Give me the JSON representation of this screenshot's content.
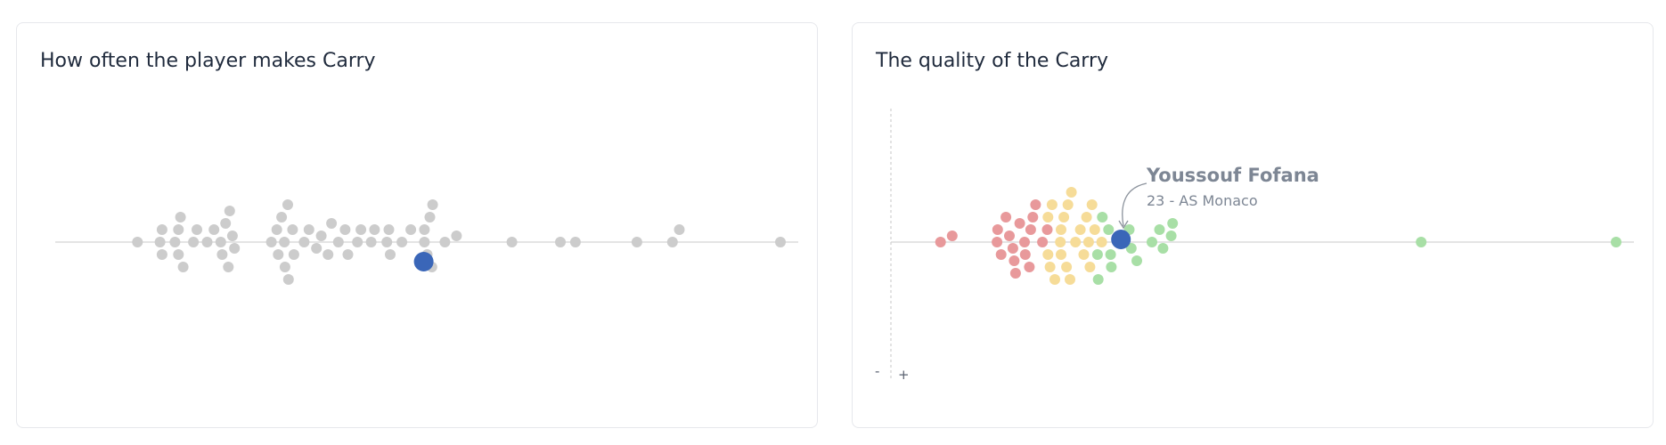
{
  "charts": {
    "left": {
      "title": "How often the player makes Carry"
    },
    "right": {
      "title": "The quality of the Carry",
      "player_name": "Youssouf Fofana",
      "player_sub": "23 - AS Monaco",
      "minus_label": "-",
      "plus_label": "+"
    }
  },
  "colors": {
    "neutral": "#cccccc",
    "highlight": "#3a66b8",
    "low": "#e8999b",
    "mid": "#f6dc98",
    "high": "#a8dfa6",
    "axis": "#e4e4e4"
  },
  "chart_data": [
    {
      "type": "scatter",
      "title": "How often the player makes Carry",
      "xlabel": "",
      "ylabel": "",
      "xlim": [
        0,
        100
      ],
      "series": [
        {
          "values": [
            5.9,
            9.2,
            9.5,
            9.5,
            11.4,
            11.9,
            11.9,
            12.2,
            12.6,
            14.1,
            14.6,
            16.1,
            17.1,
            18.1,
            18.3,
            18.8,
            19.2,
            19.4,
            19.8,
            20.1,
            25.5,
            26.3,
            26.5,
            27.0,
            27.4,
            27.5,
            27.9,
            28.0,
            28.6,
            28.8,
            30.3,
            31.0,
            32.1,
            32.8,
            33.8,
            34.3,
            35.3,
            36.3,
            36.7,
            38.1,
            38.6,
            40.1,
            40.6,
            42.4,
            42.7,
            42.9,
            44.6,
            45.9,
            47.9,
            47.9,
            48.3,
            48.7,
            49.0,
            49.1,
            50.9,
            52.6,
            60.7,
            67.8,
            70.0,
            79.0,
            84.2,
            85.2,
            100.0
          ],
          "highlight": {
            "label": "Youssouf Fofana",
            "value": 47.8
          }
        }
      ]
    },
    {
      "type": "scatter",
      "title": "The quality of the Carry",
      "xlabel": "",
      "ylabel": "",
      "xlim": [
        0,
        100
      ],
      "series": [
        {
          "values": [
            1.9,
            3.6,
            10.1,
            10.2,
            10.7,
            11.4,
            11.9,
            12.4,
            12.6,
            12.8,
            13.4,
            14.1,
            14.2,
            14.8,
            15.0,
            15.3,
            15.7,
            16.7,
            17.4,
            17.5,
            17.5,
            17.8,
            18.1,
            18.5,
            19.3,
            19.4,
            19.4,
            19.8,
            20.2,
            20.4,
            20.7,
            20.9,
            21.5,
            22.2,
            22.7,
            23.1,
            23.4,
            23.6,
            23.9,
            24.3,
            24.7,
            24.8,
            25.3,
            25.4,
            26.3,
            26.6,
            26.7,
            27.8,
            29.3,
            29.6,
            30.4,
            32.6,
            33.7,
            34.2,
            35.4,
            35.6,
            71.7,
            100.0
          ],
          "categories": [
            "low",
            "low",
            "low",
            "low",
            "low",
            "low",
            "low",
            "low",
            "low",
            "low",
            "low",
            "low",
            "low",
            "low",
            "low",
            "low",
            "low",
            "low",
            "low",
            "mid",
            "mid",
            "mid",
            "mid",
            "mid",
            "mid",
            "mid",
            "mid",
            "mid",
            "mid",
            "mid",
            "mid",
            "mid",
            "mid",
            "mid",
            "mid",
            "mid",
            "mid",
            "mid",
            "mid",
            "mid",
            "high",
            "high",
            "mid",
            "high",
            "high",
            "high",
            "high",
            "high",
            "high",
            "high",
            "high",
            "high",
            "high",
            "high",
            "high",
            "high",
            "high",
            "high"
          ],
          "highlight": {
            "label": "Youssouf Fofana",
            "value": 28.1
          }
        }
      ]
    }
  ]
}
